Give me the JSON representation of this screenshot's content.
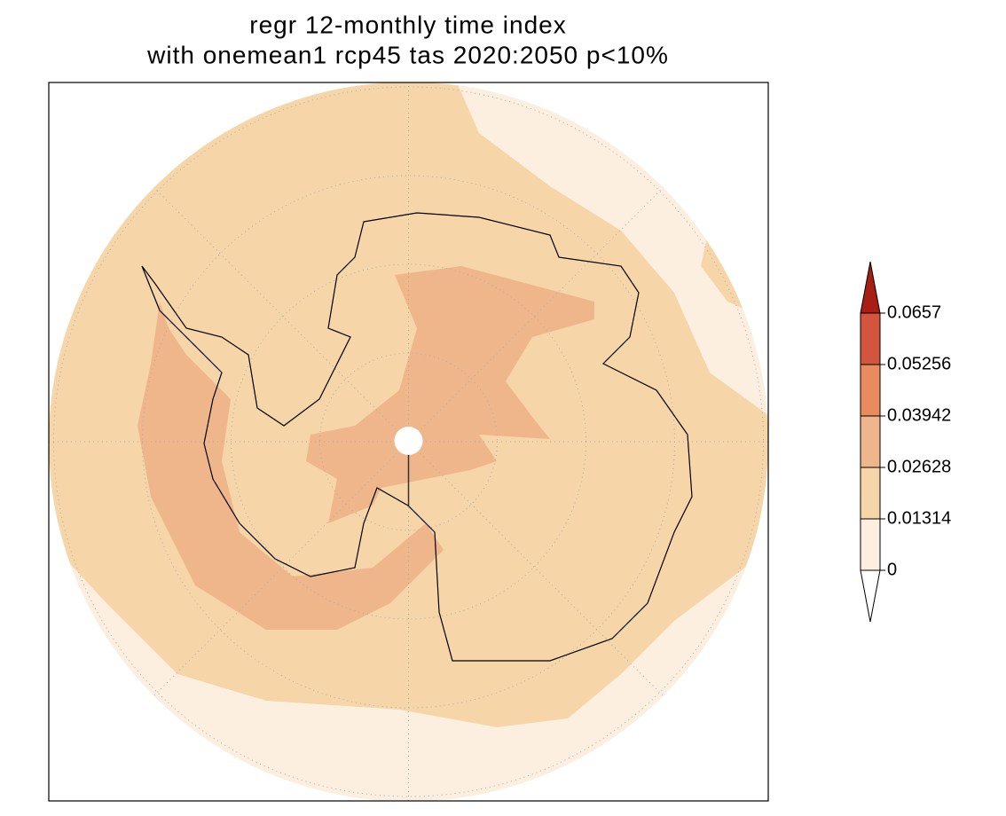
{
  "title": [
    "regr 12-monthly time index",
    "with  onemean1 rcp45 tas 2020:2050 p<10%"
  ],
  "colorbar": {
    "ticks": [
      0,
      0.01314,
      0.02628,
      0.03942,
      0.05256,
      0.0657
    ],
    "colors": [
      "#fdefdf",
      "#f6d6a8",
      "#f0b68b",
      "#e98b5e",
      "#d3553d"
    ],
    "under_color": "#ffffff",
    "over_color": "#a81e15"
  }
}
